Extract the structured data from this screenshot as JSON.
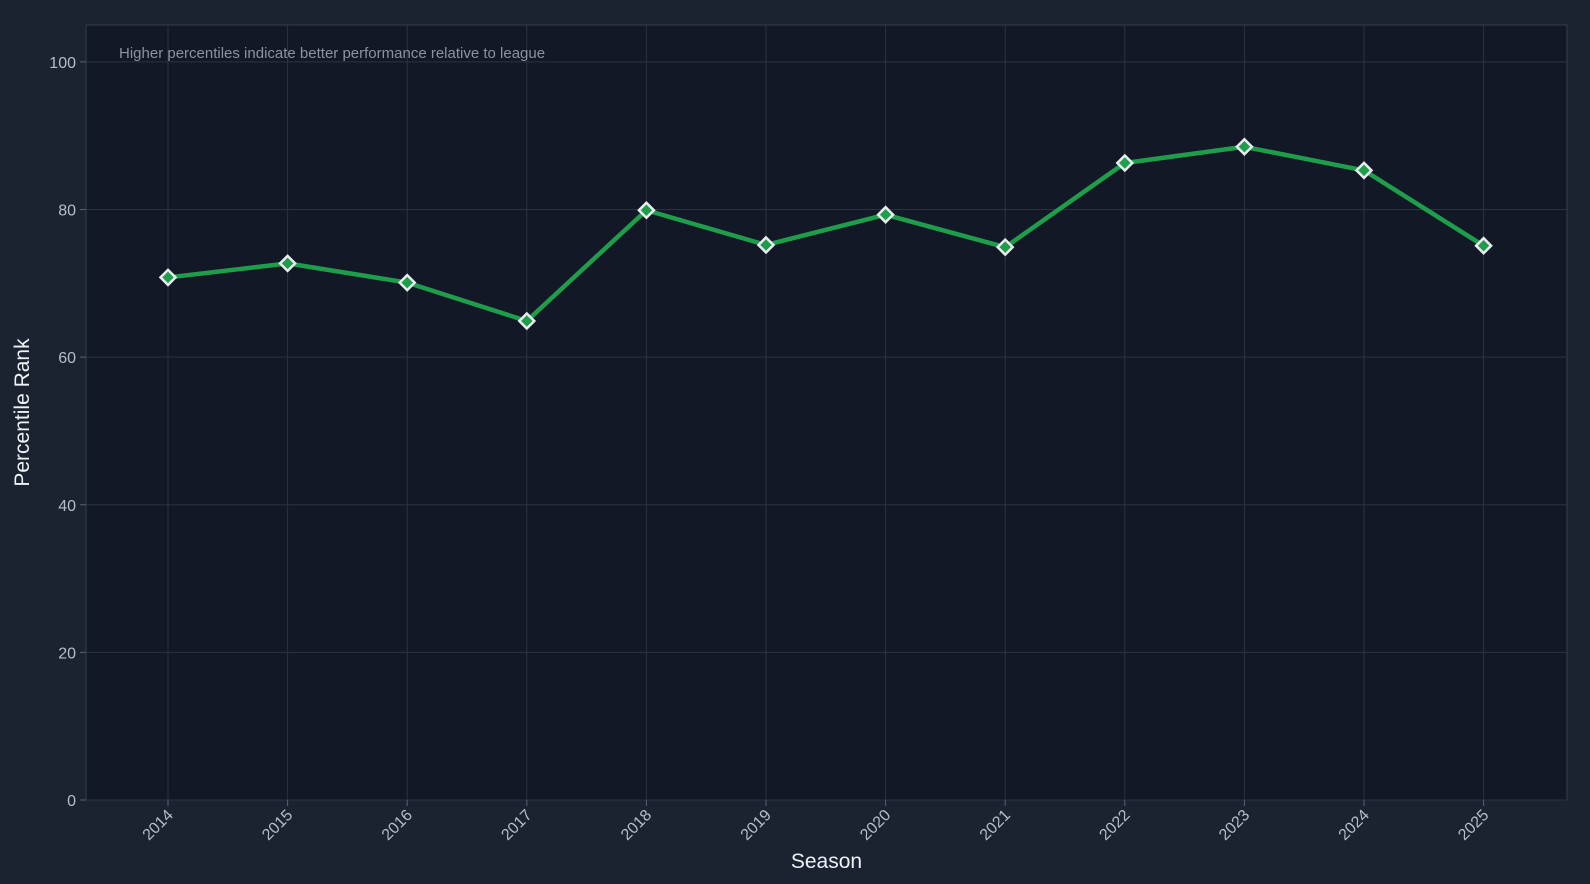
{
  "chart_data": {
    "type": "line",
    "annotation": "Higher percentiles indicate better performance relative to league",
    "xlabel": "Season",
    "ylabel": "Percentile Rank",
    "categories": [
      "2014",
      "2015",
      "2016",
      "2017",
      "2018",
      "2019",
      "2020",
      "2021",
      "2022",
      "2023",
      "2024",
      "2025"
    ],
    "series": [
      {
        "values": [
          70.8,
          72.7,
          70.1,
          64.9,
          79.9,
          75.2,
          79.3,
          74.9,
          86.3,
          88.5,
          85.3,
          75.1
        ],
        "color": "#1e9e4a",
        "marker": "diamond"
      }
    ],
    "ylim": [
      0,
      105
    ],
    "yticks": [
      0,
      20,
      40,
      60,
      80,
      100
    ],
    "grid": true,
    "legend": "none",
    "colors": {
      "background": "#1b2230",
      "plot_background": "#121826",
      "grid": "#2b3343",
      "line": "#1e9e4a",
      "marker_fill": "#1e9e4a",
      "marker_edge": "#e8ecef"
    }
  }
}
